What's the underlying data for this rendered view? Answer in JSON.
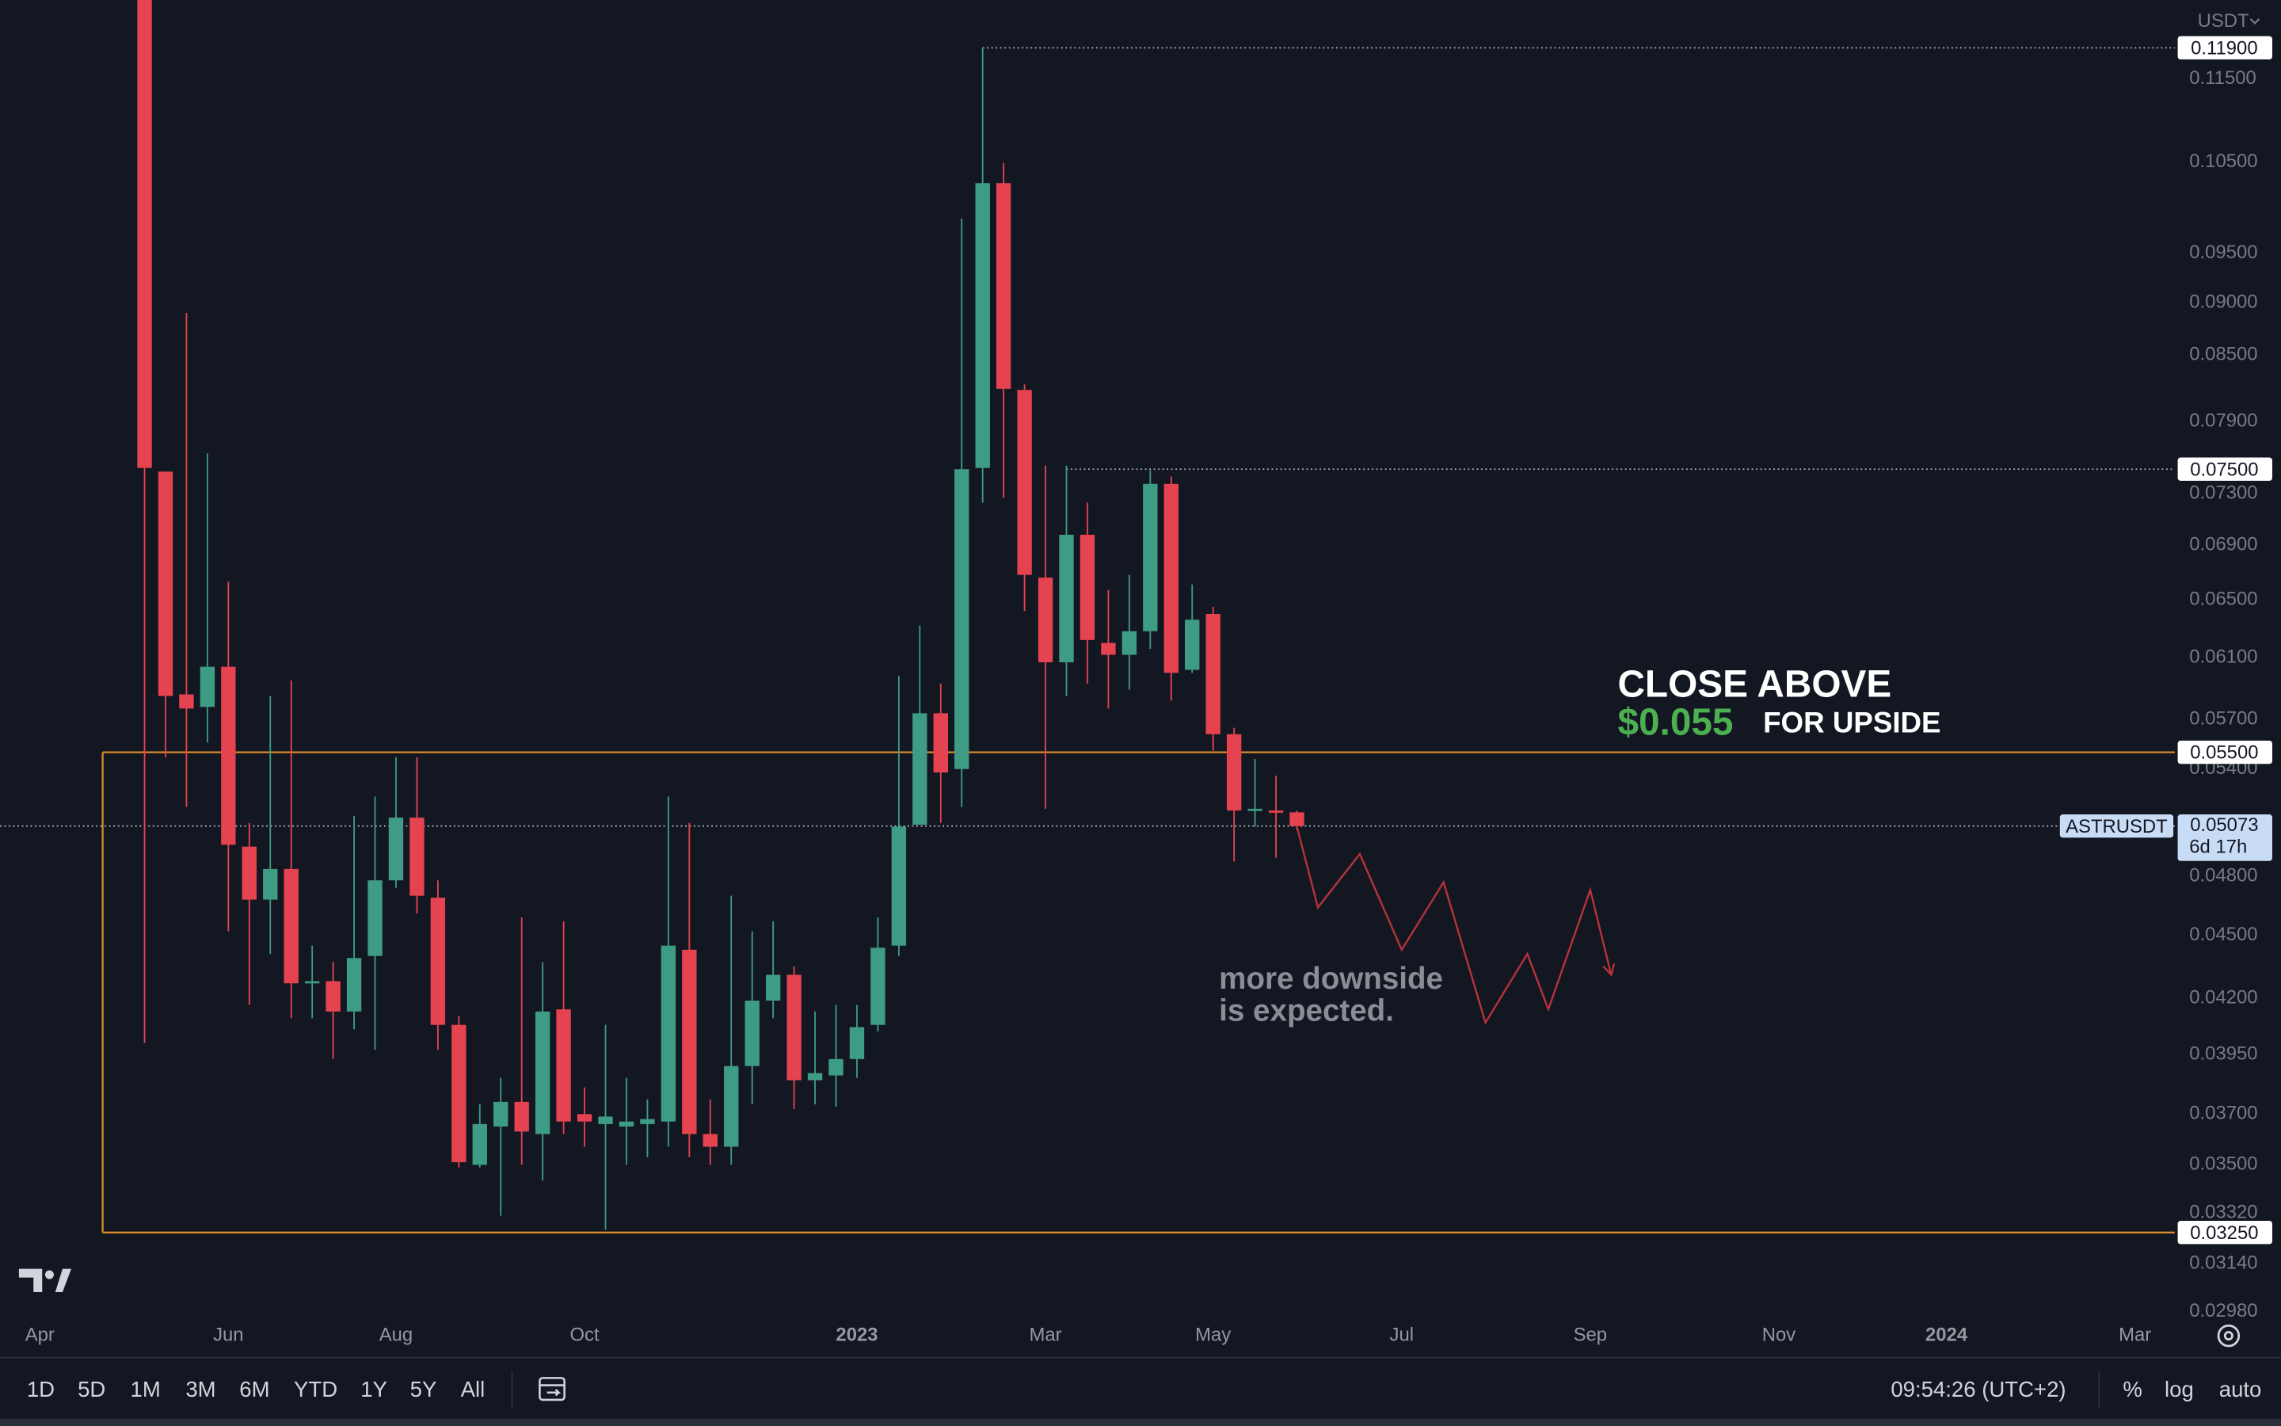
{
  "chart_data": {
    "type": "candlestick",
    "symbol": "ASTRUSDT",
    "currency": "USDT",
    "log_scale": true,
    "colors": {
      "up": "#3e9c85",
      "down": "#e5434f",
      "level": "#e0902a",
      "projection": "#b8323b",
      "last": "#c9dcf6"
    },
    "xlim": [
      -6.9,
      96.9
    ],
    "ylim": [
      0.02963,
      0.1254
    ],
    "xticks": [
      {
        "value": -5,
        "label": "Apr"
      },
      {
        "value": 4,
        "label": "Jun"
      },
      {
        "value": 12,
        "label": "Aug"
      },
      {
        "value": 21,
        "label": "Oct"
      },
      {
        "value": 34,
        "label": "2023"
      },
      {
        "value": 43,
        "label": "Mar"
      },
      {
        "value": 51,
        "label": "May"
      },
      {
        "value": 60,
        "label": "Jul"
      },
      {
        "value": 69,
        "label": "Sep"
      },
      {
        "value": 78,
        "label": "Nov"
      },
      {
        "value": 86,
        "label": "2024"
      },
      {
        "value": 95,
        "label": "Mar"
      }
    ],
    "yticks": [
      {
        "value": 0.115,
        "label": "0.11500"
      },
      {
        "value": 0.105,
        "label": "0.10500"
      },
      {
        "value": 0.095,
        "label": "0.09500"
      },
      {
        "value": 0.09,
        "label": "0.09000"
      },
      {
        "value": 0.085,
        "label": "0.08500"
      },
      {
        "value": 0.079,
        "label": "0.07900"
      },
      {
        "value": 0.073,
        "label": "0.07300"
      },
      {
        "value": 0.069,
        "label": "0.06900"
      },
      {
        "value": 0.065,
        "label": "0.06500"
      },
      {
        "value": 0.061,
        "label": "0.06100"
      },
      {
        "value": 0.057,
        "label": "0.05700"
      },
      {
        "value": 0.054,
        "label": "0.05400"
      },
      {
        "value": 0.048,
        "label": "0.04800"
      },
      {
        "value": 0.045,
        "label": "0.04500"
      },
      {
        "value": 0.042,
        "label": "0.04200"
      },
      {
        "value": 0.0395,
        "label": "0.03950"
      },
      {
        "value": 0.037,
        "label": "0.03700"
      },
      {
        "value": 0.035,
        "label": "0.03500"
      },
      {
        "value": 0.0332,
        "label": "0.03320"
      },
      {
        "value": 0.0314,
        "label": "0.03140"
      },
      {
        "value": 0.0298,
        "label": "0.02980"
      }
    ],
    "x": [
      0,
      1,
      2,
      3,
      4,
      5,
      6,
      7,
      8,
      9,
      10,
      11,
      12,
      13,
      14,
      15,
      16,
      17,
      18,
      19,
      20,
      21,
      22,
      23,
      24,
      25,
      26,
      27,
      28,
      29,
      30,
      31,
      32,
      33,
      34,
      35,
      36,
      37,
      38,
      39,
      40,
      41,
      42,
      43,
      44,
      45,
      46,
      47,
      48,
      49,
      50,
      51,
      52,
      53,
      54,
      55
    ],
    "open": [
      0.13,
      0.0748,
      0.0586,
      0.0578,
      0.0604,
      0.0496,
      0.0468,
      0.0484,
      0.0427,
      0.0428,
      0.0414,
      0.044,
      0.0478,
      0.0512,
      0.0469,
      0.0408,
      0.035,
      0.0365,
      0.0375,
      0.0362,
      0.0415,
      0.037,
      0.0366,
      0.0365,
      0.0366,
      0.0367,
      0.0443,
      0.0362,
      0.0357,
      0.039,
      0.0419,
      0.0431,
      0.0384,
      0.0386,
      0.0393,
      0.0408,
      0.0445,
      0.0508,
      0.0574,
      0.054,
      0.0751,
      0.1026,
      0.0818,
      0.0666,
      0.0607,
      0.0698,
      0.062,
      0.0612,
      0.0628,
      0.0738,
      0.0602,
      0.064,
      0.0561,
      0.0516,
      0.0516,
      0.0515
    ],
    "high": [
      0.135,
      0.0748,
      0.089,
      0.0763,
      0.0663,
      0.0509,
      0.0585,
      0.0595,
      0.0445,
      0.0437,
      0.0513,
      0.0524,
      0.0547,
      0.0547,
      0.0478,
      0.0412,
      0.0374,
      0.0385,
      0.0459,
      0.0437,
      0.0457,
      0.0381,
      0.0408,
      0.0385,
      0.0376,
      0.0524,
      0.0509,
      0.0376,
      0.047,
      0.0452,
      0.0457,
      0.0435,
      0.0414,
      0.0417,
      0.0417,
      0.0459,
      0.0598,
      0.0632,
      0.0593,
      0.0987,
      0.119,
      0.1049,
      0.0823,
      0.0753,
      0.0753,
      0.0723,
      0.0657,
      0.0668,
      0.0749,
      0.0744,
      0.0661,
      0.0645,
      0.0565,
      0.0546,
      0.0536,
      0.0516
    ],
    "low": [
      0.04,
      0.0547,
      0.0518,
      0.0556,
      0.0452,
      0.0417,
      0.0441,
      0.0411,
      0.0411,
      0.0393,
      0.0406,
      0.0397,
      0.0474,
      0.0461,
      0.0397,
      0.0349,
      0.0349,
      0.0331,
      0.035,
      0.0344,
      0.0362,
      0.0357,
      0.0326,
      0.035,
      0.0353,
      0.0357,
      0.0353,
      0.035,
      0.035,
      0.0374,
      0.0411,
      0.0372,
      0.0374,
      0.0373,
      0.0385,
      0.0405,
      0.044,
      0.0509,
      0.0509,
      0.0518,
      0.0723,
      0.0727,
      0.0642,
      0.0517,
      0.0585,
      0.0593,
      0.0577,
      0.0589,
      0.0616,
      0.0582,
      0.06,
      0.0551,
      0.0488,
      0.0507,
      0.049,
      0.0505
    ],
    "close": [
      0.0751,
      0.0585,
      0.0577,
      0.0604,
      0.0497,
      0.0468,
      0.0484,
      0.0427,
      0.0428,
      0.0414,
      0.0439,
      0.0478,
      0.0512,
      0.047,
      0.0408,
      0.0351,
      0.0366,
      0.0375,
      0.0363,
      0.0414,
      0.0367,
      0.0367,
      0.0369,
      0.0367,
      0.0368,
      0.0445,
      0.0362,
      0.0357,
      0.039,
      0.0419,
      0.0431,
      0.0384,
      0.0387,
      0.0393,
      0.0407,
      0.0444,
      0.0507,
      0.0574,
      0.0538,
      0.075,
      0.1026,
      0.0819,
      0.0668,
      0.0607,
      0.0698,
      0.0622,
      0.0612,
      0.0628,
      0.0738,
      0.06,
      0.0636,
      0.0561,
      0.0516,
      0.0517,
      0.0515,
      0.05073
    ],
    "levels": [
      {
        "value": 0.119,
        "label": "0.11900",
        "from": 40
      },
      {
        "value": 0.075,
        "label": "0.07500",
        "from": 44
      },
      {
        "value": 0.055,
        "label": "0.05500"
      },
      {
        "value": 0.0325,
        "label": "0.03250"
      }
    ],
    "box_from": -2,
    "last_price": {
      "value": 0.05073,
      "label": "0.05073",
      "countdown": "6d 17h"
    },
    "projection": {
      "x": [
        55,
        56,
        58,
        60,
        62,
        64,
        66,
        67,
        69,
        70
      ],
      "values": [
        0.0507,
        0.0464,
        0.0492,
        0.0443,
        0.0477,
        0.0409,
        0.0441,
        0.0415,
        0.0473,
        0.0431
      ]
    },
    "annotations": {
      "close_above": "CLOSE ABOVE",
      "price": "$0.055",
      "for_upside": "FOR UPSIDE",
      "downside": [
        "more downside",
        "is expected."
      ]
    },
    "toolbar": {
      "ranges": [
        "1D",
        "5D",
        "1M",
        "3M",
        "6M",
        "YTD",
        "1Y",
        "5Y",
        "All"
      ],
      "clock": "09:54:26 (UTC+2)",
      "percent": "%",
      "log": "log",
      "auto": "auto"
    }
  }
}
